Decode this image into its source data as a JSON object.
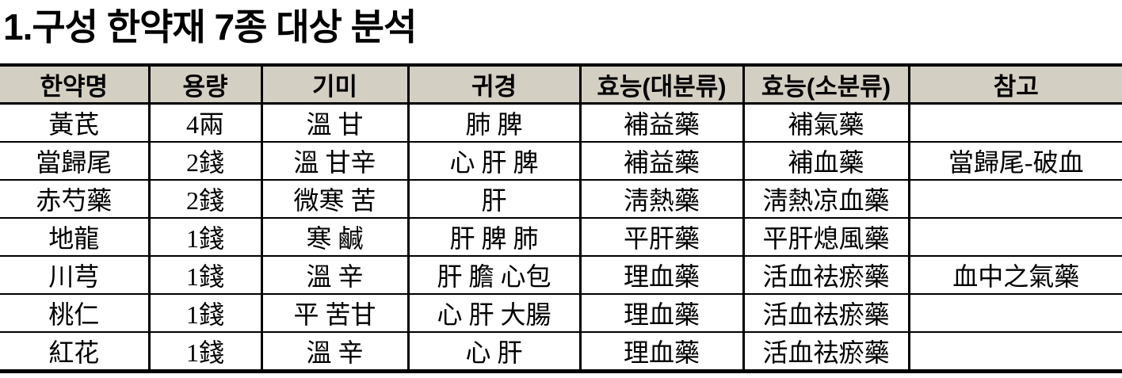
{
  "title": "1.구성 한약재 7종 대상 분석",
  "colors": {
    "header_background": "#d4cfc3",
    "border": "#000000",
    "text": "#000000",
    "page_background": "#ffffff"
  },
  "table": {
    "headers": [
      "한약명",
      "용량",
      "기미",
      "귀경",
      "효능(대분류)",
      "효능(소분류)",
      "참고"
    ],
    "rows": [
      [
        "黃芪",
        "4兩",
        "溫 甘",
        "肺 脾",
        "補益藥",
        "補氣藥",
        ""
      ],
      [
        "當歸尾",
        "2錢",
        "溫 甘辛",
        "心 肝 脾",
        "補益藥",
        "補血藥",
        "當歸尾-破血"
      ],
      [
        "赤芍藥",
        "2錢",
        "微寒 苦",
        "肝",
        "淸熱藥",
        "淸熱凉血藥",
        ""
      ],
      [
        "地龍",
        "1錢",
        "寒 鹹",
        "肝 脾 肺",
        "平肝藥",
        "平肝熄風藥",
        ""
      ],
      [
        "川芎",
        "1錢",
        "溫 辛",
        "肝 膽 心包",
        "理血藥",
        "活血祛瘀藥",
        "血中之氣藥"
      ],
      [
        "桃仁",
        "1錢",
        "平 苦甘",
        "心 肝 大腸",
        "理血藥",
        "活血祛瘀藥",
        ""
      ],
      [
        "紅花",
        "1錢",
        "溫 辛",
        "心 肝",
        "理血藥",
        "活血祛瘀藥",
        ""
      ]
    ]
  }
}
